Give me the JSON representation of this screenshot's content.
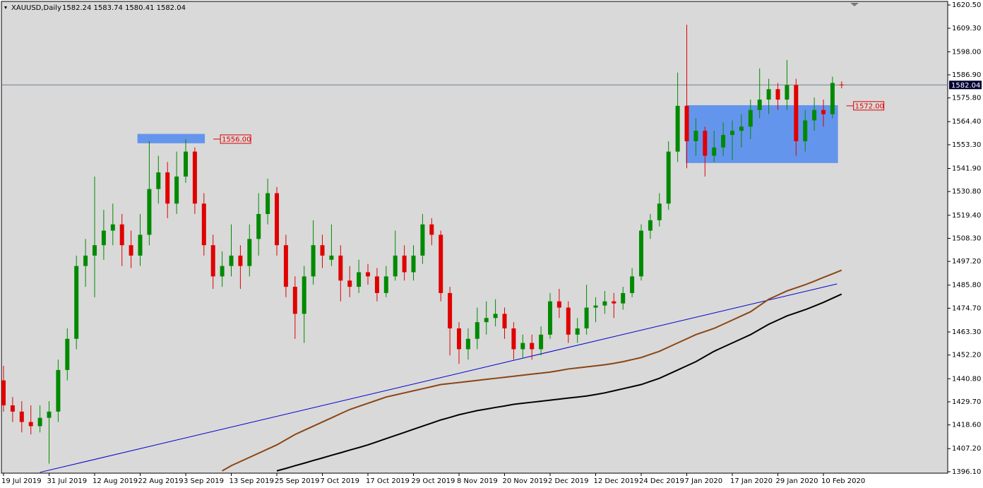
{
  "chart_data": {
    "type": "candlestick",
    "title": "XAUUSD,Daily",
    "subtitle": "1582.24 1583.74 1580.41 1582.04",
    "categories": [
      "19 Jul 2019",
      null,
      null,
      null,
      null,
      "31 Jul 2019",
      null,
      null,
      null,
      null,
      "12 Aug 2019",
      null,
      null,
      null,
      null,
      "22 Aug 2019",
      null,
      null,
      null,
      null,
      "3 Sep 2019",
      null,
      null,
      null,
      null,
      "13 Sep 2019",
      null,
      null,
      null,
      null,
      "25 Sep 2019",
      null,
      null,
      null,
      null,
      "7 Oct 2019",
      null,
      null,
      null,
      null,
      "17 Oct 2019",
      null,
      null,
      null,
      null,
      "29 Oct 2019",
      null,
      null,
      null,
      null,
      "8 Nov 2019",
      null,
      null,
      null,
      null,
      "20 Nov 2019",
      null,
      null,
      null,
      null,
      "2 Dec 2019",
      null,
      null,
      null,
      null,
      "12 Dec 2019",
      null,
      null,
      null,
      null,
      "24 Dec 2019",
      null,
      null,
      null,
      null,
      "7 Jan 2020",
      null,
      null,
      null,
      null,
      "17 Jan 2020",
      null,
      null,
      null,
      null,
      "29 Jan 2020",
      null,
      null,
      null,
      null,
      "10 Feb 2020",
      null,
      null
    ],
    "open": [
      1440,
      1428,
      1425,
      1420,
      1418,
      1422,
      1425,
      1445,
      1460,
      1495,
      1500,
      1505,
      1512,
      1515,
      1505,
      1500,
      1510,
      1532,
      1540,
      1525,
      1538,
      1550,
      1525,
      1505,
      1490,
      1495,
      1500,
      1495,
      1508,
      1520,
      1530,
      1505,
      1485,
      1472,
      1490,
      1505,
      1498,
      1500,
      1488,
      1485,
      1492,
      1490,
      1482,
      1490,
      1500,
      1492,
      1500,
      1515,
      1510,
      1482,
      1465,
      1455,
      1460,
      1468,
      1470,
      1472,
      1465,
      1455,
      1458,
      1455,
      1462,
      1478,
      1475,
      1462,
      1465,
      1475,
      1476,
      1478,
      1477,
      1482,
      1490,
      1512,
      1517,
      1525,
      1550,
      1572,
      1555,
      1560,
      1548,
      1552,
      1558,
      1560,
      1562,
      1570,
      1575,
      1580,
      1575,
      1582,
      1555,
      1565,
      1570,
      1568,
      1582.24
    ],
    "high": [
      1447,
      1432,
      1430,
      1428,
      1428,
      1430,
      1450,
      1465,
      1500,
      1508,
      1538,
      1522,
      1525,
      1520,
      1512,
      1520,
      1555,
      1548,
      1545,
      1550,
      1556,
      1552,
      1530,
      1510,
      1502,
      1515,
      1505,
      1515,
      1530,
      1537,
      1533,
      1510,
      1490,
      1495,
      1517,
      1510,
      1515,
      1505,
      1495,
      1498,
      1496,
      1494,
      1495,
      1512,
      1505,
      1505,
      1520,
      1518,
      1512,
      1485,
      1468,
      1465,
      1475,
      1478,
      1479,
      1475,
      1468,
      1462,
      1462,
      1466,
      1482,
      1484,
      1478,
      1470,
      1486,
      1480,
      1483,
      1482,
      1485,
      1494,
      1515,
      1520,
      1530,
      1555,
      1588,
      1611,
      1566,
      1562,
      1560,
      1564,
      1565,
      1568,
      1575,
      1590,
      1585,
      1583,
      1594,
      1585,
      1570,
      1576,
      1575,
      1586,
      1583.74
    ],
    "low": [
      1425,
      1420,
      1415,
      1414,
      1415,
      1400,
      1420,
      1440,
      1455,
      1485,
      1480,
      1498,
      1505,
      1495,
      1494,
      1495,
      1505,
      1525,
      1518,
      1520,
      1535,
      1520,
      1500,
      1484,
      1485,
      1490,
      1484,
      1490,
      1500,
      1515,
      1500,
      1480,
      1460,
      1458,
      1486,
      1494,
      1495,
      1478,
      1480,
      1482,
      1486,
      1478,
      1480,
      1488,
      1488,
      1488,
      1496,
      1505,
      1478,
      1452,
      1448,
      1450,
      1455,
      1462,
      1466,
      1460,
      1450,
      1451,
      1450,
      1452,
      1460,
      1470,
      1458,
      1458,
      1462,
      1468,
      1472,
      1470,
      1474,
      1480,
      1488,
      1508,
      1514,
      1522,
      1545,
      1542,
      1548,
      1538,
      1545,
      1548,
      1546,
      1552,
      1556,
      1566,
      1568,
      1570,
      1570,
      1548,
      1550,
      1560,
      1562,
      1566,
      1580.41
    ],
    "close": [
      1428,
      1425,
      1420,
      1418,
      1422,
      1425,
      1445,
      1460,
      1495,
      1500,
      1505,
      1512,
      1515,
      1505,
      1500,
      1510,
      1532,
      1540,
      1525,
      1538,
      1550,
      1525,
      1505,
      1490,
      1495,
      1500,
      1495,
      1508,
      1520,
      1530,
      1505,
      1485,
      1472,
      1490,
      1505,
      1500,
      1500,
      1488,
      1485,
      1492,
      1490,
      1482,
      1490,
      1500,
      1492,
      1500,
      1515,
      1510,
      1482,
      1465,
      1455,
      1460,
      1468,
      1470,
      1472,
      1465,
      1455,
      1458,
      1455,
      1462,
      1478,
      1475,
      1462,
      1465,
      1475,
      1476,
      1478,
      1477,
      1482,
      1490,
      1512,
      1517,
      1525,
      1550,
      1572,
      1555,
      1560,
      1548,
      1552,
      1558,
      1560,
      1562,
      1570,
      1575,
      1580,
      1575,
      1582,
      1555,
      1565,
      1570,
      1568,
      1583,
      1582.04
    ],
    "bull_color": "#008a00",
    "bear_color": "#e00000",
    "moving_averages": [
      {
        "color": "#8b4513",
        "values": [
          null,
          null,
          null,
          null,
          null,
          null,
          null,
          null,
          null,
          null,
          null,
          null,
          null,
          null,
          null,
          null,
          null,
          null,
          null,
          null,
          null,
          null,
          null,
          null,
          1396.5,
          1399,
          1401,
          1403,
          1405,
          1407,
          1409,
          1411.5,
          1414,
          1416,
          1418,
          1420,
          1422,
          1424,
          1426,
          1427.5,
          1429,
          1430.5,
          1432,
          1433,
          1434,
          1435,
          1436,
          1437,
          1438,
          1438.5,
          1439,
          1439.5,
          1440,
          1440.5,
          1441,
          1441.5,
          1442,
          1442.5,
          1443,
          1443.5,
          1444,
          1444.7,
          1445.5,
          1446,
          1446.5,
          1447,
          1447.5,
          1448.2,
          1449,
          1450,
          1451,
          1452.5,
          1454,
          1456,
          1458,
          1460,
          1462,
          1463.5,
          1465,
          1467,
          1469,
          1471,
          1473,
          1476,
          1479,
          1481,
          1483,
          1484.5,
          1486,
          1487.7,
          1489.5,
          1491.2,
          1493
        ]
      },
      {
        "color": "#000000",
        "values": [
          null,
          null,
          null,
          null,
          null,
          null,
          null,
          null,
          null,
          null,
          null,
          null,
          null,
          null,
          null,
          null,
          null,
          null,
          null,
          null,
          null,
          null,
          null,
          null,
          null,
          null,
          null,
          null,
          null,
          null,
          1396.5,
          1397.7,
          1399,
          1400.2,
          1401.5,
          1402.7,
          1404,
          1405.2,
          1406.5,
          1407.7,
          1409,
          1410.5,
          1412,
          1413.5,
          1415,
          1416.5,
          1418,
          1419.5,
          1421,
          1422.2,
          1423.5,
          1424.5,
          1425.5,
          1426.2,
          1427,
          1427.7,
          1428.5,
          1429,
          1429.5,
          1430,
          1430.5,
          1431,
          1431.5,
          1432,
          1432.5,
          1433.2,
          1434,
          1435,
          1436,
          1437,
          1438,
          1439.5,
          1441,
          1443,
          1445,
          1447,
          1449,
          1451.5,
          1454,
          1456,
          1458,
          1460,
          1462,
          1464.5,
          1467,
          1469,
          1471,
          1472.5,
          1474,
          1475.7,
          1477.5,
          1479.5,
          1481.5
        ]
      }
    ],
    "trendline": {
      "color": "#0000cc",
      "x": [
        4,
        91.5
      ],
      "values": [
        1395.8,
        1486.4
      ]
    },
    "levels": [
      {
        "x": [
          14.7,
          22.1
        ],
        "range": [
          1554,
          1558.5
        ],
        "value": 1556,
        "label": "1556.00",
        "color": "#6495ed"
      },
      {
        "x": [
          74.9,
          91.6
        ],
        "range": [
          1544.5,
          1572.3
        ],
        "value": 1572,
        "label": "1572.00",
        "color": "#6495ed"
      }
    ],
    "current_price": {
      "value": 1582.04,
      "label": "1582.04"
    },
    "ylim": [
      1395.4,
      1622.2
    ],
    "yticks": [
      {
        "value": 1620.5,
        "label": "1620.50"
      },
      {
        "value": 1609.3,
        "label": "1609.30"
      },
      {
        "value": 1598,
        "label": "1598.00"
      },
      {
        "value": 1586.9,
        "label": "1586.90"
      },
      {
        "value": 1575.8,
        "label": "1575.80"
      },
      {
        "value": 1564.4,
        "label": "1564.40"
      },
      {
        "value": 1553.3,
        "label": "1553.30"
      },
      {
        "value": 1541.9,
        "label": "1541.90"
      },
      {
        "value": 1530.8,
        "label": "1530.80"
      },
      {
        "value": 1519.4,
        "label": "1519.40"
      },
      {
        "value": 1508.3,
        "label": "1508.30"
      },
      {
        "value": 1497.2,
        "label": "1497.20"
      },
      {
        "value": 1485.8,
        "label": "1485.80"
      },
      {
        "value": 1474.7,
        "label": "1474.70"
      },
      {
        "value": 1463.3,
        "label": "1463.30"
      },
      {
        "value": 1452.2,
        "label": "1452.20"
      },
      {
        "value": 1440.8,
        "label": "1440.80"
      },
      {
        "value": 1429.7,
        "label": "1429.70"
      },
      {
        "value": 1418.6,
        "label": "1418.60"
      },
      {
        "value": 1407.2,
        "label": "1407.20"
      },
      {
        "value": 1396.1,
        "label": "1396.10"
      }
    ]
  }
}
